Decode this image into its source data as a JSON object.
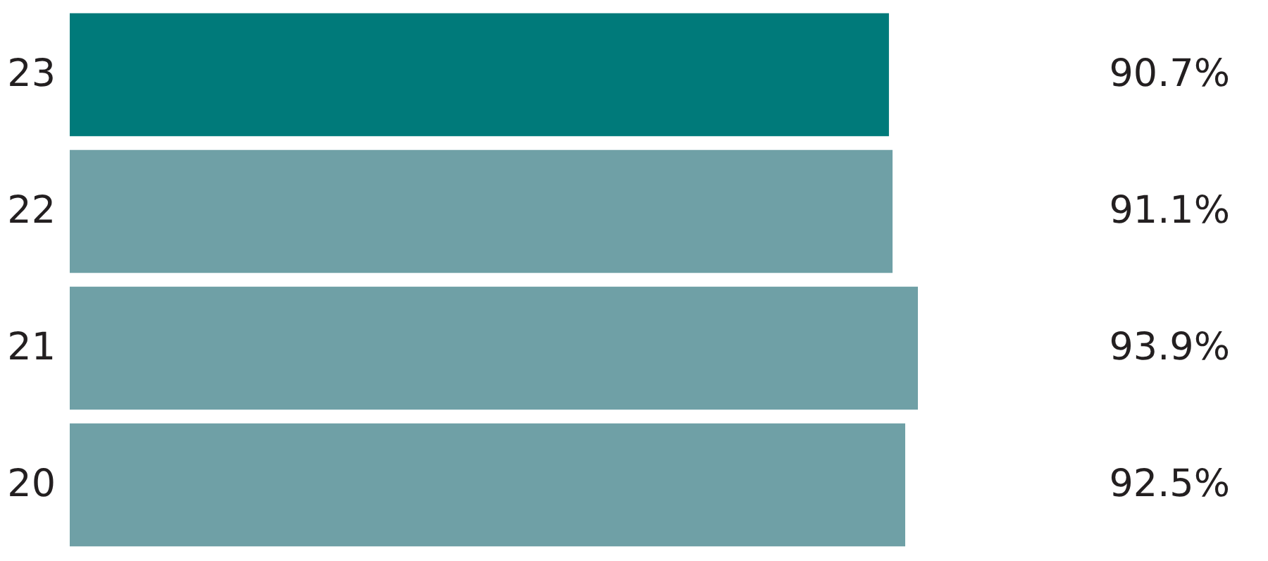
{
  "chart_data": {
    "type": "bar",
    "orientation": "horizontal",
    "categories": [
      "23",
      "22",
      "21",
      "20"
    ],
    "values": [
      90.7,
      91.1,
      93.9,
      92.5
    ],
    "colors": [
      "#007a7a",
      "#6fa0a6",
      "#6fa0a6",
      "#6fa0a6"
    ],
    "value_labels": [
      "90.7%",
      "91.1%",
      "93.9%",
      "92.5%"
    ]
  }
}
